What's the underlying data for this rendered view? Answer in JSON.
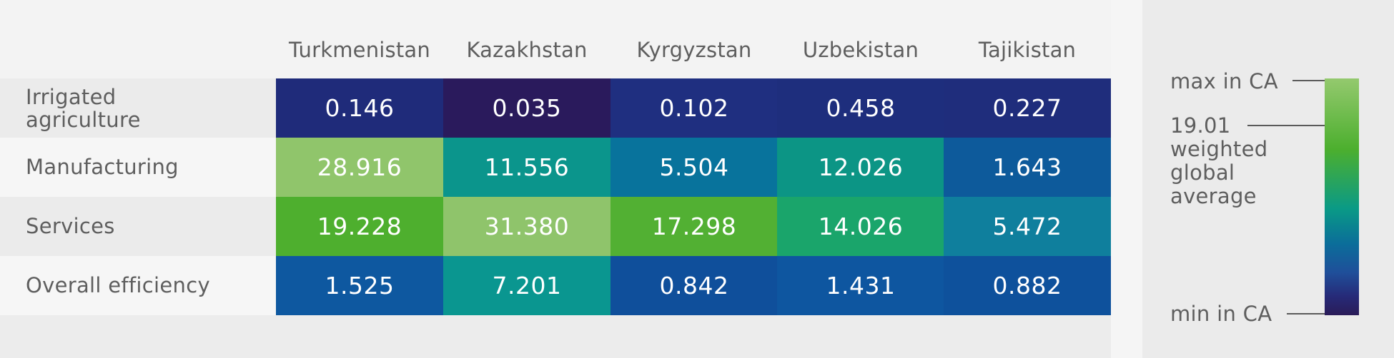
{
  "chart_data": {
    "type": "heatmap",
    "columns": [
      "Turkmenistan",
      "Kazakhstan",
      "Kyrgyzstan",
      "Uzbekistan",
      "Tajikistan"
    ],
    "rows": [
      {
        "label": "Irrigated agriculture",
        "values": [
          "0.146",
          "0.035",
          "0.102",
          "0.458",
          "0.227"
        ]
      },
      {
        "label": "Manufacturing",
        "values": [
          "28.916",
          "11.556",
          "5.504",
          "12.026",
          "1.643"
        ]
      },
      {
        "label": "Services",
        "values": [
          "19.228",
          "31.380",
          "17.298",
          "14.026",
          "5.472"
        ]
      },
      {
        "label": "Overall efficiency",
        "values": [
          "1.525",
          "7.201",
          "0.842",
          "1.431",
          "0.882"
        ]
      }
    ],
    "cell_colors": [
      [
        "#1f2b7a",
        "#2a1a5c",
        "#1f2f80",
        "#1e2e7d",
        "#1f2d7c"
      ],
      [
        "#90c56b",
        "#0b958c",
        "#08739c",
        "#0c9585",
        "#0d5a9b"
      ],
      [
        "#4eaf2e",
        "#8fc46b",
        "#52b033",
        "#1aa56b",
        "#0f7f9d"
      ],
      [
        "#0e58a0",
        "#0a9690",
        "#0f4f9b",
        "#0e56a0",
        "#0e519c"
      ]
    ],
    "legend": {
      "max_label": "max in CA",
      "marker_label": "19.01 weighted global average",
      "min_label": "min in CA",
      "colors": [
        "#94c96e",
        "#4caf2e",
        "#0a9a86",
        "#0b6d9a",
        "#262a78",
        "#2a1c58"
      ]
    }
  }
}
